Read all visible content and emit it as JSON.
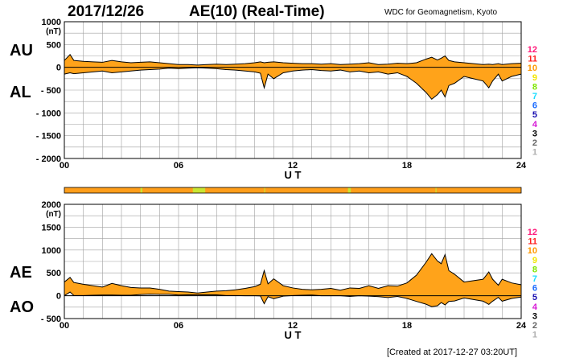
{
  "header": {
    "date": "2017/12/26",
    "title": "AE(10) (Real-Time)",
    "source": "WDC for Geomagnetism, Kyoto"
  },
  "footer": {
    "created": "[Created at 2017-12-27 03:20UT]"
  },
  "colors": {
    "fill": "#ffa31a",
    "line": "#000000",
    "grid": "#a0a0a0",
    "bar_base": "#ff9e1a",
    "bar_hi": "#c8e632"
  },
  "legend_numbers": [
    {
      "label": "12",
      "color": "#ff1a7a"
    },
    {
      "label": "11",
      "color": "#ff1f1f"
    },
    {
      "label": "10",
      "color": "#ff9900"
    },
    {
      "label": "9",
      "color": "#f2e600"
    },
    {
      "label": "8",
      "color": "#7fe600"
    },
    {
      "label": "7",
      "color": "#1adcff"
    },
    {
      "label": "6",
      "color": "#1a6bff"
    },
    {
      "label": "5",
      "color": "#1a0fb0"
    },
    {
      "label": "4",
      "color": "#d61ad6"
    },
    {
      "label": "3",
      "color": "#000000"
    },
    {
      "label": "2",
      "color": "#666666"
    },
    {
      "label": "1",
      "color": "#b0b0b0"
    }
  ],
  "chart_data": [
    {
      "type": "area",
      "top_label": "AU",
      "bottom_label": "AL",
      "ylabel": "(nT)",
      "xlabel": "U T",
      "ylim": [
        -2000,
        1000
      ],
      "yticks": [
        1000,
        500,
        0,
        -500,
        -1000,
        -1500,
        -2000
      ],
      "ytick_labels": [
        "1000",
        "500",
        "0",
        "- 500",
        "- 1000",
        "- 1500",
        "- 2000"
      ],
      "xlim": [
        0,
        24
      ],
      "xticks": [
        0,
        6,
        12,
        18,
        24
      ],
      "xtick_labels": [
        "00",
        "06",
        "12",
        "18",
        "24"
      ],
      "grid": true,
      "x": [
        0,
        0.3,
        0.5,
        1,
        1.5,
        2,
        2.5,
        3,
        3.5,
        4,
        4.5,
        5,
        5.5,
        6,
        6.5,
        7,
        7.5,
        8,
        8.5,
        9,
        9.5,
        10,
        10.3,
        10.5,
        10.7,
        11,
        11.5,
        12,
        12.5,
        13,
        13.5,
        14,
        14.5,
        15,
        15.5,
        16,
        16.5,
        17,
        17.5,
        18,
        18.5,
        19,
        19.3,
        19.6,
        19.8,
        20,
        20.2,
        20.5,
        21,
        21.5,
        22,
        22.3,
        22.5,
        22.8,
        23,
        23.5,
        24
      ],
      "series": [
        {
          "values": [
            150,
            280,
            150,
            130,
            120,
            110,
            150,
            120,
            100,
            110,
            120,
            100,
            80,
            60,
            60,
            50,
            60,
            70,
            60,
            70,
            80,
            100,
            120,
            100,
            110,
            120,
            100,
            90,
            80,
            80,
            70,
            80,
            60,
            70,
            80,
            100,
            60,
            70,
            90,
            80,
            100,
            180,
            220,
            160,
            200,
            250,
            150,
            120,
            100,
            80,
            60,
            70,
            60,
            80,
            60,
            80,
            90
          ]
        },
        {
          "values": [
            -150,
            -120,
            -140,
            -120,
            -100,
            -80,
            -120,
            -100,
            -80,
            -60,
            -50,
            -40,
            -20,
            -30,
            -20,
            -10,
            -20,
            -30,
            -50,
            -60,
            -80,
            -100,
            -130,
            -450,
            -150,
            -250,
            -120,
            -80,
            -60,
            -50,
            -70,
            -80,
            -60,
            -100,
            -80,
            -120,
            -100,
            -150,
            -120,
            -200,
            -350,
            -550,
            -700,
            -600,
            -500,
            -650,
            -400,
            -350,
            -200,
            -250,
            -300,
            -450,
            -300,
            -150,
            -300,
            -200,
            -150
          ]
        }
      ]
    },
    {
      "type": "area",
      "top_label": "AE",
      "bottom_label": "AO",
      "ylabel": "(nT)",
      "xlabel": "U T",
      "ylim": [
        -500,
        2000
      ],
      "yticks": [
        2000,
        1500,
        1000,
        500,
        0,
        -500
      ],
      "ytick_labels": [
        "2000",
        "1500",
        "1000",
        "500",
        "0",
        "- 500"
      ],
      "xlim": [
        0,
        24
      ],
      "xticks": [
        0,
        6,
        12,
        18,
        24
      ],
      "xtick_labels": [
        "00",
        "06",
        "12",
        "18",
        "24"
      ],
      "grid": true,
      "x": [
        0,
        0.3,
        0.5,
        1,
        1.5,
        2,
        2.5,
        3,
        3.5,
        4,
        4.5,
        5,
        5.5,
        6,
        6.5,
        7,
        7.5,
        8,
        8.5,
        9,
        9.5,
        10,
        10.3,
        10.5,
        10.7,
        11,
        11.5,
        12,
        12.5,
        13,
        13.5,
        14,
        14.5,
        15,
        15.5,
        16,
        16.5,
        17,
        17.5,
        18,
        18.5,
        19,
        19.3,
        19.6,
        19.8,
        20,
        20.2,
        20.5,
        21,
        21.5,
        22,
        22.3,
        22.5,
        22.8,
        23,
        23.5,
        24
      ],
      "series": [
        {
          "values": [
            300,
            400,
            290,
            250,
            220,
            190,
            270,
            220,
            180,
            170,
            170,
            140,
            100,
            90,
            80,
            60,
            80,
            100,
            110,
            130,
            160,
            200,
            250,
            550,
            260,
            370,
            220,
            170,
            140,
            130,
            140,
            160,
            120,
            170,
            160,
            220,
            160,
            220,
            210,
            280,
            450,
            730,
            920,
            760,
            700,
            900,
            550,
            470,
            300,
            330,
            360,
            520,
            360,
            230,
            360,
            280,
            240
          ]
        },
        {
          "values": [
            0,
            80,
            5,
            5,
            10,
            15,
            15,
            10,
            10,
            25,
            35,
            30,
            30,
            15,
            20,
            20,
            20,
            20,
            5,
            5,
            0,
            0,
            -5,
            -175,
            -20,
            -65,
            -10,
            5,
            10,
            15,
            0,
            0,
            0,
            -15,
            0,
            -10,
            -20,
            -40,
            -15,
            -60,
            -125,
            -185,
            -240,
            -220,
            -150,
            -200,
            -125,
            -115,
            -50,
            -85,
            -120,
            -190,
            -120,
            -35,
            -120,
            -60,
            -30
          ]
        }
      ]
    }
  ],
  "timeline_bar": {
    "x": [
      0,
      24
    ]
  }
}
